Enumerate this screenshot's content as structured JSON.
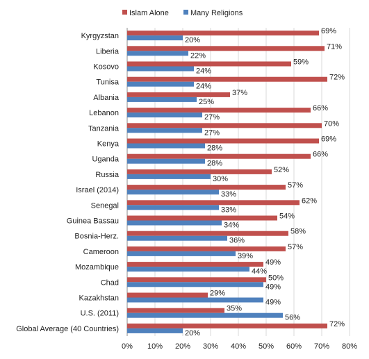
{
  "chart_data": {
    "type": "bar",
    "orientation": "horizontal",
    "categories": [
      "Kyrgyzstan",
      "Liberia",
      "Kosovo",
      "Tunisa",
      "Albania",
      "Lebanon",
      "Tanzania",
      "Kenya",
      "Uganda",
      "Russia",
      "Israel (2014)",
      "Senegal",
      "Guinea Bassau",
      "Bosnia-Herz.",
      "Cameroon",
      "Mozambique",
      "Chad",
      "Kazakhstan",
      "U.S. (2011)",
      "Global Average (40 Countries)"
    ],
    "series": [
      {
        "name": "Islam Alone",
        "color": "#c0504d",
        "values": [
          69,
          71,
          59,
          72,
          37,
          66,
          70,
          69,
          66,
          52,
          57,
          62,
          54,
          58,
          57,
          49,
          50,
          29,
          35,
          72
        ],
        "labels": [
          "69%",
          "71%",
          "59%",
          "72%",
          "37%",
          "66%",
          "70%",
          "69%",
          "66%",
          "52%",
          "57%",
          "62%",
          "54%",
          "58%",
          "57%",
          "49%",
          "50%",
          "29%",
          "35%",
          "72%"
        ]
      },
      {
        "name": "Many Religions",
        "color": "#4f81bd",
        "values": [
          20,
          22,
          24,
          24,
          25,
          27,
          27,
          28,
          28,
          30,
          33,
          33,
          34,
          36,
          39,
          44,
          49,
          49,
          56,
          20
        ],
        "labels": [
          "20%",
          "22%",
          "24%",
          "24%",
          "25%",
          "27%",
          "27%",
          "28%",
          "28%",
          "30%",
          "33%",
          "33%",
          "34%",
          "36%",
          "39%",
          "44%",
          "49%",
          "49%",
          "56%",
          "20%"
        ]
      }
    ],
    "xlim": [
      0,
      80
    ],
    "xticks": [
      "0%",
      "10%",
      "20%",
      "30%",
      "40%",
      "50%",
      "60%",
      "70%",
      "80%"
    ],
    "title": "",
    "xlabel": "",
    "ylabel": "",
    "grid": "vertical",
    "legend": "top-center"
  }
}
